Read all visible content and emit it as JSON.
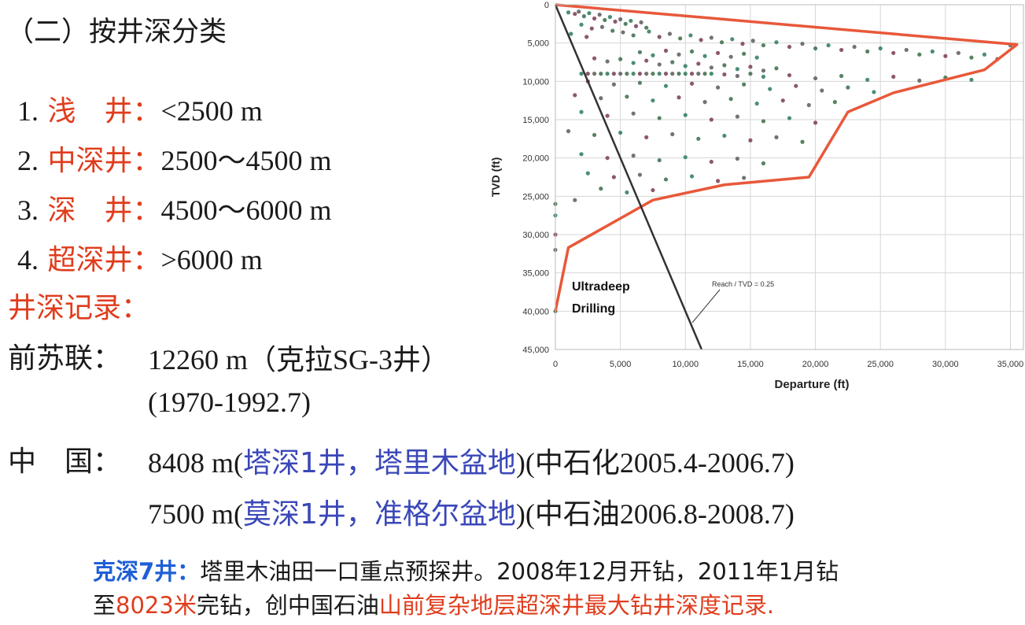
{
  "heading": "（二）按井深分类",
  "classes": [
    {
      "num": "1.",
      "name": "浅　井：",
      "range": "<2500  m"
    },
    {
      "num": "2.",
      "name": "中深井：",
      "range": "2500～4500  m"
    },
    {
      "num": "3.",
      "name": "深　井：",
      "range": "4500～6000  m"
    },
    {
      "num": "4.",
      "name": "超深井：",
      "range": ">6000  m"
    }
  ],
  "records_heading": "井深记录：",
  "records": {
    "ussr": {
      "label": "前苏联：",
      "value": "12260  m（克拉SG-3井）",
      "period": "(1970-1992.7)"
    },
    "china": {
      "label": "中　国：",
      "line1_prefix": "8408  m(",
      "line1_well": "塔深1井，塔里木盆地",
      "line1_suffix": ")(中石化2005.4-2006.7)",
      "line2_prefix": "7500  m(",
      "line2_well": "莫深1井，准格尔盆地",
      "line2_suffix": ")(中石油2006.8-2008.7)"
    }
  },
  "note": {
    "well": "克深7井：",
    "text1": "塔里木油田一口重点预探井。2008年12月开钻，2011年1月钻",
    "text2a": "至",
    "depth": "8023米",
    "text2b": "完钻，创中国石油",
    "record": "山前复杂地层超深井最大钻井深度记录."
  },
  "colors": {
    "red": "#e03c1c",
    "blue": "#3a47b8",
    "note_blue": "#1f5fd6",
    "envelope": "#e8583a",
    "trend_line": "#333333"
  },
  "chart_data": {
    "type": "scatter",
    "xlabel": "Departure (ft)",
    "ylabel": "TVD (ft)",
    "xlim": [
      0,
      36000
    ],
    "ylim": [
      0,
      45000
    ],
    "y_inverted": true,
    "x_ticks": [
      "0",
      "5,000",
      "10,000",
      "15,000",
      "20,000",
      "25,000",
      "30,000",
      "35,000"
    ],
    "x_tick_values": [
      0,
      5000,
      10000,
      15000,
      20000,
      25000,
      30000,
      35000
    ],
    "y_ticks": [
      "0",
      "5,000",
      "10,000",
      "15,000",
      "20,000",
      "25,000",
      "30,000",
      "35,000",
      "40,000",
      "45,000"
    ],
    "y_tick_values": [
      0,
      5000,
      10000,
      15000,
      20000,
      25000,
      30000,
      35000,
      40000,
      45000
    ],
    "grid": true,
    "annotations": {
      "region_label_1": "Ultradeep",
      "region_label_2": "Drilling",
      "trend_label": "Reach / TVD = 0.25"
    },
    "trend_line": {
      "ratio": 0.25,
      "points": [
        [
          0,
          0
        ],
        [
          11250,
          45000
        ]
      ]
    },
    "envelope": [
      [
        0,
        0
      ],
      [
        35500,
        5200
      ],
      [
        33000,
        8500
      ],
      [
        26000,
        11500
      ],
      [
        22500,
        14000
      ],
      [
        19500,
        22500
      ],
      [
        13000,
        23500
      ],
      [
        7500,
        25500
      ],
      [
        1000,
        31700
      ],
      [
        0,
        40000
      ]
    ],
    "point_colors": [
      "#2d7a5a",
      "#7a3b52",
      "#5a5a5a",
      "#3b6b4a"
    ],
    "points": [
      [
        1000,
        1000
      ],
      [
        1500,
        1200
      ],
      [
        1800,
        900
      ],
      [
        2200,
        1500
      ],
      [
        2600,
        1100
      ],
      [
        3000,
        1800
      ],
      [
        3400,
        1300
      ],
      [
        3800,
        2000
      ],
      [
        4200,
        1600
      ],
      [
        4600,
        2200
      ],
      [
        5000,
        1900
      ],
      [
        5400,
        2500
      ],
      [
        5800,
        2100
      ],
      [
        6200,
        2800
      ],
      [
        6600,
        2300
      ],
      [
        7000,
        3000
      ],
      [
        2000,
        2600
      ],
      [
        2800,
        3100
      ],
      [
        3600,
        2900
      ],
      [
        4400,
        3400
      ],
      [
        1200,
        3800
      ],
      [
        2400,
        4200
      ],
      [
        5200,
        3600
      ],
      [
        6000,
        4000
      ],
      [
        7200,
        3500
      ],
      [
        8000,
        4200
      ],
      [
        8800,
        3800
      ],
      [
        9600,
        4400
      ],
      [
        10400,
        4000
      ],
      [
        11200,
        4600
      ],
      [
        12000,
        4300
      ],
      [
        12800,
        4900
      ],
      [
        13600,
        4500
      ],
      [
        14400,
        5100
      ],
      [
        15200,
        4700
      ],
      [
        16000,
        5300
      ],
      [
        17000,
        4900
      ],
      [
        18000,
        5500
      ],
      [
        19000,
        5100
      ],
      [
        20000,
        5700
      ],
      [
        21000,
        5300
      ],
      [
        22000,
        5900
      ],
      [
        23000,
        5500
      ],
      [
        24000,
        6100
      ],
      [
        25000,
        5700
      ],
      [
        26000,
        6300
      ],
      [
        27000,
        5900
      ],
      [
        28000,
        6500
      ],
      [
        29000,
        6100
      ],
      [
        30000,
        6700
      ],
      [
        31000,
        6300
      ],
      [
        32000,
        6900
      ],
      [
        33000,
        6500
      ],
      [
        34000,
        7100
      ],
      [
        35000,
        5300
      ],
      [
        6500,
        6200
      ],
      [
        7500,
        6600
      ],
      [
        8500,
        6000
      ],
      [
        9500,
        6500
      ],
      [
        10500,
        6100
      ],
      [
        11500,
        6700
      ],
      [
        12500,
        6300
      ],
      [
        13500,
        6800
      ],
      [
        14500,
        6400
      ],
      [
        15500,
        6900
      ],
      [
        3000,
        7000
      ],
      [
        4000,
        7400
      ],
      [
        5000,
        7100
      ],
      [
        6000,
        7600
      ],
      [
        7000,
        7300
      ],
      [
        8000,
        7800
      ],
      [
        9000,
        7500
      ],
      [
        10000,
        8000
      ],
      [
        11000,
        7700
      ],
      [
        12000,
        8200
      ],
      [
        13000,
        7900
      ],
      [
        14000,
        8400
      ],
      [
        15000,
        8100
      ],
      [
        16000,
        8600
      ],
      [
        17000,
        8300
      ],
      [
        2000,
        9000
      ],
      [
        2500,
        9000
      ],
      [
        3000,
        9000
      ],
      [
        3500,
        9000
      ],
      [
        4000,
        9000
      ],
      [
        4500,
        9000
      ],
      [
        5000,
        9000
      ],
      [
        5500,
        9000
      ],
      [
        6000,
        9000
      ],
      [
        6500,
        9000
      ],
      [
        7000,
        9000
      ],
      [
        7500,
        9000
      ],
      [
        8000,
        9000
      ],
      [
        8500,
        9000
      ],
      [
        9000,
        9000
      ],
      [
        9500,
        9000
      ],
      [
        10000,
        9000
      ],
      [
        10500,
        9000
      ],
      [
        11000,
        9000
      ],
      [
        11500,
        9000
      ],
      [
        12000,
        9000
      ],
      [
        13000,
        9100
      ],
      [
        14000,
        9300
      ],
      [
        15000,
        9000
      ],
      [
        16000,
        9400
      ],
      [
        18000,
        9200
      ],
      [
        20000,
        9600
      ],
      [
        22000,
        9300
      ],
      [
        24000,
        9800
      ],
      [
        26000,
        9400
      ],
      [
        28000,
        9900
      ],
      [
        30000,
        9500
      ],
      [
        32000,
        9800
      ],
      [
        2500,
        10000
      ],
      [
        4500,
        10400
      ],
      [
        6500,
        10200
      ],
      [
        8500,
        10600
      ],
      [
        10500,
        10300
      ],
      [
        12500,
        10800
      ],
      [
        14500,
        10400
      ],
      [
        16500,
        11000
      ],
      [
        18500,
        10600
      ],
      [
        20500,
        11200
      ],
      [
        22500,
        10800
      ],
      [
        24500,
        11400
      ],
      [
        1500,
        11800
      ],
      [
        3500,
        12200
      ],
      [
        5500,
        12000
      ],
      [
        7500,
        12500
      ],
      [
        9500,
        12100
      ],
      [
        11500,
        12700
      ],
      [
        13500,
        12300
      ],
      [
        15500,
        12900
      ],
      [
        17500,
        12500
      ],
      [
        19500,
        13100
      ],
      [
        21500,
        12700
      ],
      [
        2000,
        14000
      ],
      [
        4000,
        14500
      ],
      [
        6000,
        14200
      ],
      [
        8000,
        14800
      ],
      [
        10000,
        14400
      ],
      [
        12000,
        15000
      ],
      [
        14000,
        14600
      ],
      [
        16000,
        15200
      ],
      [
        18000,
        14800
      ],
      [
        20000,
        15400
      ],
      [
        1000,
        16500
      ],
      [
        3000,
        17000
      ],
      [
        5000,
        16700
      ],
      [
        7000,
        17300
      ],
      [
        9000,
        16900
      ],
      [
        11000,
        17500
      ],
      [
        13000,
        17100
      ],
      [
        15000,
        17700
      ],
      [
        17000,
        17300
      ],
      [
        19000,
        17900
      ],
      [
        2000,
        19500
      ],
      [
        4000,
        20000
      ],
      [
        6000,
        19700
      ],
      [
        8000,
        20300
      ],
      [
        10000,
        19900
      ],
      [
        12000,
        20500
      ],
      [
        14000,
        20100
      ],
      [
        16000,
        20700
      ],
      [
        2500,
        22000
      ],
      [
        4500,
        22500
      ],
      [
        6500,
        22200
      ],
      [
        8500,
        22800
      ],
      [
        10500,
        22400
      ],
      [
        12500,
        23000
      ],
      [
        14500,
        22600
      ],
      [
        3500,
        24000
      ],
      [
        5500,
        24500
      ],
      [
        7500,
        24200
      ],
      [
        1500,
        25500
      ],
      [
        0,
        26000
      ],
      [
        0,
        27500
      ],
      [
        0,
        30000
      ],
      [
        0,
        32000
      ],
      [
        0,
        40000
      ]
    ]
  }
}
